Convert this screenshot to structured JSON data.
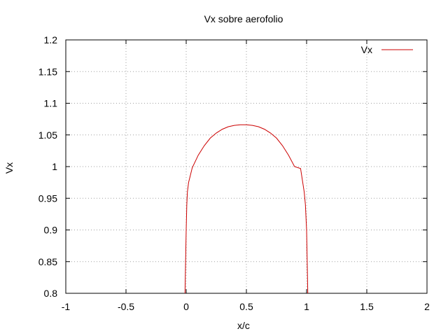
{
  "chart_data": {
    "type": "line",
    "title": "Vx sobre aerofolio",
    "xlabel": "x/c",
    "ylabel": "Vx",
    "xlim": [
      -1,
      2
    ],
    "ylim": [
      0.8,
      1.2
    ],
    "xticks": [
      -1,
      -0.5,
      0,
      0.5,
      1,
      1.5,
      2
    ],
    "xtick_labels": [
      "-1",
      "-0.5",
      "0",
      "0.5",
      "1",
      "1.5",
      "2"
    ],
    "yticks": [
      0.8,
      0.85,
      0.9,
      0.95,
      1.0,
      1.05,
      1.1,
      1.15,
      1.2
    ],
    "ytick_labels": [
      "0.8",
      "0.85",
      "0.9",
      "0.95",
      "1",
      "1.05",
      "1.1",
      "1.15",
      "1.2"
    ],
    "grid": true,
    "legend_position": "top-right",
    "series": [
      {
        "name": "Vx",
        "color": "#cc0000",
        "x": [
          -0.01,
          -0.005,
          0.0,
          0.005,
          0.01,
          0.02,
          0.05,
          0.1,
          0.15,
          0.2,
          0.25,
          0.3,
          0.35,
          0.4,
          0.45,
          0.5,
          0.55,
          0.6,
          0.65,
          0.7,
          0.75,
          0.8,
          0.85,
          0.9,
          0.95,
          0.98,
          0.99,
          1.0,
          1.005,
          1.01
        ],
        "values": [
          0.8,
          0.85,
          0.9,
          0.94,
          0.96,
          0.975,
          0.998,
          1.018,
          1.033,
          1.045,
          1.053,
          1.059,
          1.063,
          1.065,
          1.066,
          1.066,
          1.065,
          1.063,
          1.059,
          1.053,
          1.045,
          1.033,
          1.018,
          1.0,
          0.997,
          0.96,
          0.94,
          0.9,
          0.85,
          0.8
        ]
      }
    ]
  }
}
